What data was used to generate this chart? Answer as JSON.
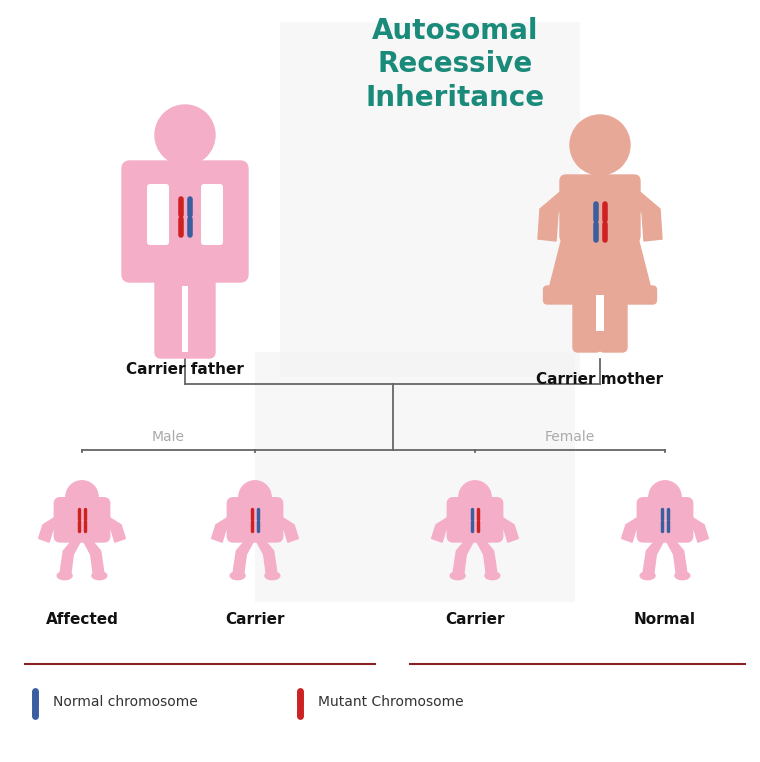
{
  "title": "Autosomal\nRecessive\nInheritance",
  "title_color": "#1a8a7a",
  "background_color": "#ffffff",
  "male_color": "#f4aec8",
  "female_color": "#e8a898",
  "baby_male_color": "#f4aec8",
  "baby_female_color": "#f4aec8",
  "normal_chrom_color": "#3a5fa0",
  "mutant_chrom_color": "#cc2222",
  "line_color": "#666666",
  "separator_color": "#8b2020",
  "carrier_father_label": "Carrier father",
  "carrier_mother_label": "Carrier mother",
  "child_labels": [
    "Affected",
    "Carrier",
    "Carrier",
    "Normal"
  ],
  "gender_labels": [
    "Male",
    "Female"
  ],
  "legend_blue_label": "Normal chromosome",
  "legend_red_label": "Mutant Chromosome",
  "figsize": [
    7.6,
    7.62
  ],
  "dpi": 100
}
